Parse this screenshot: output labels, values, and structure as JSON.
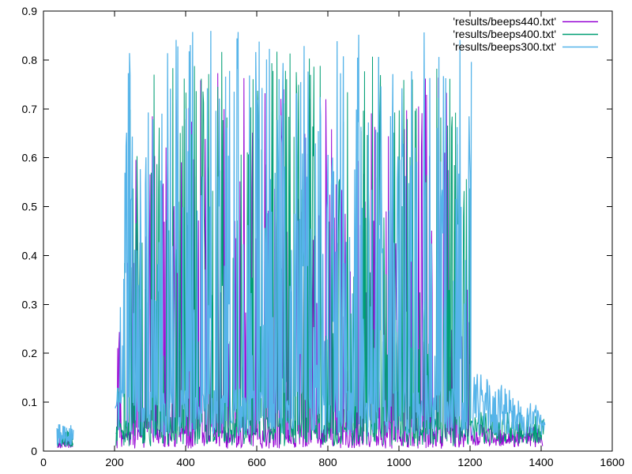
{
  "chart": {
    "background": "#ffffff",
    "border_color": "#000000",
    "text_color": "#000000"
  },
  "chart_data": {
    "type": "line",
    "title": "",
    "xlabel": "",
    "ylabel": "",
    "xlim": [
      0,
      1600
    ],
    "ylim": [
      0,
      0.9
    ],
    "grid": false,
    "legend_position": "top-right-inside",
    "x_ticks": [
      {
        "v": 0,
        "label": "0"
      },
      {
        "v": 200,
        "label": "200"
      },
      {
        "v": 400,
        "label": "400"
      },
      {
        "v": 600,
        "label": "600"
      },
      {
        "v": 800,
        "label": "800"
      },
      {
        "v": 1000,
        "label": "1000"
      },
      {
        "v": 1200,
        "label": "1200"
      },
      {
        "v": 1400,
        "label": "1400"
      },
      {
        "v": 1600,
        "label": "1600"
      }
    ],
    "y_ticks": [
      {
        "v": 0.0,
        "label": "0"
      },
      {
        "v": 0.1,
        "label": "0.1"
      },
      {
        "v": 0.2,
        "label": "0.2"
      },
      {
        "v": 0.3,
        "label": "0.3"
      },
      {
        "v": 0.4,
        "label": "0.4"
      },
      {
        "v": 0.5,
        "label": "0.5"
      },
      {
        "v": 0.6,
        "label": "0.6"
      },
      {
        "v": 0.7,
        "label": "0.7"
      },
      {
        "v": 0.8,
        "label": "0.8"
      },
      {
        "v": 0.9,
        "label": "0.9"
      }
    ],
    "series": [
      {
        "name": "'results/beeps440.txt'",
        "color": "#9400d3",
        "stroke_width": 1.0,
        "seed": 440,
        "segments": [
          {
            "style": "noise",
            "x0": 40,
            "x1": 82,
            "step": 1.0,
            "base": 0.006,
            "peak": 0.034,
            "pow": 1.2
          },
          {
            "style": "beeps",
            "x0": 204,
            "x1": 1200,
            "step": 1.6,
            "ramp": 22,
            "peak": 0.78,
            "p_high": 0.3,
            "low_base": 0.005,
            "low_band": 0.045
          },
          {
            "style": "noise",
            "x0": 1200,
            "x1": 1405,
            "step": 1.7,
            "base": 0.008,
            "peak": 0.055,
            "pow": 1.3
          }
        ]
      },
      {
        "name": "'results/beeps400.txt'",
        "color": "#009e73",
        "stroke_width": 1.0,
        "seed": 400,
        "segments": [
          {
            "style": "noise",
            "x0": 39,
            "x1": 83,
            "step": 1.0,
            "base": 0.008,
            "peak": 0.042,
            "pow": 1.2
          },
          {
            "style": "beeps",
            "x0": 204,
            "x1": 1202,
            "step": 1.6,
            "ramp": 22,
            "peak": 0.82,
            "p_high": 0.33,
            "low_base": 0.01,
            "low_band": 0.06
          },
          {
            "style": "noise",
            "x0": 1202,
            "x1": 1408,
            "step": 1.7,
            "base": 0.015,
            "peak": 0.08,
            "pow": 1.25
          }
        ]
      },
      {
        "name": "'results/beeps300.txt'",
        "color": "#56b4e9",
        "stroke_width": 1.3,
        "seed": 300,
        "segments": [
          {
            "style": "noise",
            "x0": 38,
            "x1": 84,
            "step": 1.0,
            "base": 0.012,
            "peak": 0.056,
            "pow": 1.1
          },
          {
            "style": "beeps",
            "x0": 202,
            "x1": 1205,
            "step": 1.6,
            "ramp": 26,
            "peak": 0.86,
            "p_high": 0.4,
            "low_base": 0.03,
            "low_band": 0.1
          },
          {
            "style": "noise",
            "x0": 1205,
            "x1": 1412,
            "step": 1.7,
            "base": 0.03,
            "peak": 0.17,
            "peak_end": 0.09,
            "pow": 1.1
          }
        ]
      }
    ]
  }
}
